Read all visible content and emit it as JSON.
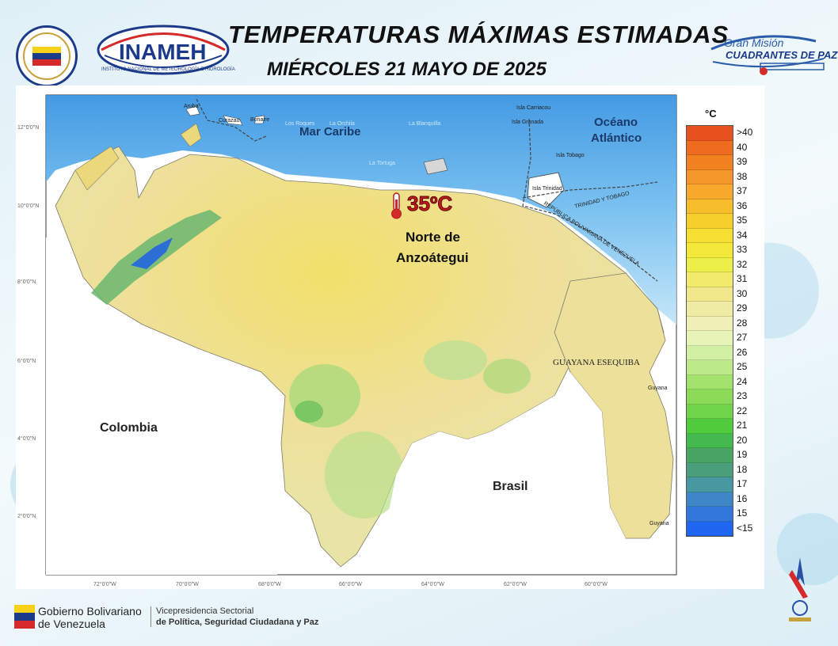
{
  "header": {
    "title": "TEMPERATURAS MÁXIMAS ESTIMADAS",
    "date": "MIÉRCOLES 21 MAYO DE 2025"
  },
  "logos": {
    "inameh": "INAMEH",
    "inameh_sub": "INSTITUTO NACIONAL DE METEOROLOGÍA E HIDROLOGÍA",
    "gran_mision_line1": "Gran Misión",
    "gran_mision_line2": "CUADRANTES DE PAZ"
  },
  "map": {
    "seas": {
      "mar_caribe": "Mar Caribe",
      "oceano_1": "Océano",
      "oceano_2": "Atlántico"
    },
    "countries": {
      "colombia": "Colombia",
      "brasil": "Brasil"
    },
    "regions": {
      "guayana": "GUAYANA ESEQUIBA",
      "trinidad_tobago": "TRINIDAD Y TOBAGO",
      "rep_bol_vzla": "REPÚBLICA BOLIVARIANA DE VENEZUELA"
    },
    "islands": {
      "aruba": "Aruba",
      "curazao": "Curazao",
      "bonaire": "Bonaire",
      "los_roques": "Los Roques",
      "la_orchila": "La Orchila",
      "la_blanquilla": "La Blanquilla",
      "la_tortuga": "La Tortuga",
      "carriacou": "Isla Carriacou",
      "granada": "Isla Granada",
      "tobago": "Isla Tobago",
      "trinidad": "Isla Trinidad",
      "guyana_1": "Guyana",
      "guyana_2": "Guyana"
    },
    "highlight": {
      "value": "35ºC",
      "place_line1": "Norte de",
      "place_line2": "Anzoátegui"
    },
    "lat_ticks": [
      "12°0'0\"N",
      "10°0'0\"N",
      "8°0'0\"N",
      "6°0'0\"N",
      "4°0'0\"N",
      "2°0'0\"N"
    ],
    "lon_ticks": [
      "72°0'0\"W",
      "70°0'0\"W",
      "68°0'0\"W",
      "66°0'0\"W",
      "64°0'0\"W",
      "62°0'0\"W",
      "60°0'0\"W"
    ]
  },
  "legend": {
    "unit": "°C",
    "items": [
      {
        "label": ">40",
        "color": "#e8511e"
      },
      {
        "label": "40",
        "color": "#ee6b1f"
      },
      {
        "label": "39",
        "color": "#f2821f"
      },
      {
        "label": "38",
        "color": "#f5962a"
      },
      {
        "label": "37",
        "color": "#f7a92c"
      },
      {
        "label": "36",
        "color": "#f7bd2a"
      },
      {
        "label": "35",
        "color": "#f7cf2c"
      },
      {
        "label": "34",
        "color": "#f5df32"
      },
      {
        "label": "33",
        "color": "#f2e93a"
      },
      {
        "label": "32",
        "color": "#ecee4a"
      },
      {
        "label": "31",
        "color": "#f1ea6c"
      },
      {
        "label": "30",
        "color": "#f0e88a"
      },
      {
        "label": "29",
        "color": "#f0eba4"
      },
      {
        "label": "28",
        "color": "#eef0b8"
      },
      {
        "label": "27",
        "color": "#e6f4b8"
      },
      {
        "label": "26",
        "color": "#d2f0a4"
      },
      {
        "label": "25",
        "color": "#bcea88"
      },
      {
        "label": "24",
        "color": "#a4e26e"
      },
      {
        "label": "23",
        "color": "#8cdb58"
      },
      {
        "label": "22",
        "color": "#6fd448"
      },
      {
        "label": "21",
        "color": "#4fcb3c"
      },
      {
        "label": "20",
        "color": "#43b950"
      },
      {
        "label": "19",
        "color": "#4aa564"
      },
      {
        "label": "18",
        "color": "#4a9e7c"
      },
      {
        "label": "17",
        "color": "#4898a2"
      },
      {
        "label": "16",
        "color": "#3f86c8"
      },
      {
        "label": "15",
        "color": "#3377dd"
      },
      {
        "label": "<15",
        "color": "#1f66f0"
      }
    ]
  },
  "footer": {
    "gob_line1": "Gobierno Bolivariano",
    "gob_line2": "de Venezuela",
    "vice_line1": "Vicepresidencia Sectorial",
    "vice_line2": "de Política, Seguridad Ciudadana y Paz"
  }
}
